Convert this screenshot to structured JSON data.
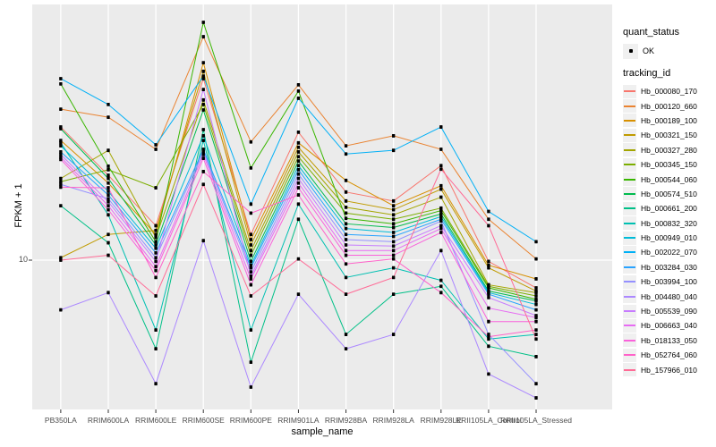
{
  "chart_data": {
    "type": "line",
    "title": "",
    "xlabel": "sample_name",
    "ylabel": "FPKM + 1",
    "y_scale": "log10",
    "y_ticks": [
      10
    ],
    "y_tick_labels": [
      "10"
    ],
    "grid": "major-only",
    "legend_position": "right",
    "point_marker": "black-point-on-every-value",
    "categories": [
      "PB350LA",
      "RRIM600LA",
      "RRIM600LE",
      "RRIM600SE",
      "RRIM600PE",
      "RRIM901LA",
      "RRIM928BA",
      "RRIM928LA",
      "RRIM928LE",
      "RRII105LA_Control",
      "RRII105LA_Stressed"
    ],
    "series": [
      {
        "name": "Hb_000080_170",
        "color": "#F8766D",
        "values": [
          29.2,
          19.8,
          13.2,
          43.1,
          12.3,
          28.0,
          17.3,
          16.1,
          21.4,
          9.9,
          8.0
        ]
      },
      {
        "name": "Hb_000120_660",
        "color": "#EA8331",
        "values": [
          33.7,
          31.6,
          24.4,
          60.4,
          25.9,
          41.0,
          25.1,
          27.2,
          24.4,
          13.9,
          10.1
        ]
      },
      {
        "name": "Hb_000189_100",
        "color": "#D89000",
        "values": [
          26.2,
          18.6,
          12.3,
          49.0,
          11.8,
          25.7,
          19.0,
          15.5,
          18.2,
          9.6,
          8.6
        ]
      },
      {
        "name": "Hb_000321_150",
        "color": "#C09B00",
        "values": [
          10.2,
          12.3,
          12.7,
          45.7,
          11.3,
          24.8,
          16.1,
          15.0,
          17.7,
          9.4,
          7.8
        ]
      },
      {
        "name": "Hb_000327_280",
        "color": "#A3A500",
        "values": [
          19.3,
          24.2,
          12.0,
          36.3,
          10.8,
          23.9,
          15.3,
          14.4,
          16.6,
          8.2,
          7.7
        ]
      },
      {
        "name": "Hb_000345_150",
        "color": "#7CAE00",
        "values": [
          18.8,
          20.7,
          17.9,
          35.0,
          10.4,
          23.0,
          14.6,
          13.9,
          15.2,
          8.1,
          7.5
        ]
      },
      {
        "name": "Hb_000544_060",
        "color": "#39B600",
        "values": [
          41.3,
          21.3,
          11.6,
          67.8,
          21.0,
          39.0,
          14.0,
          13.4,
          14.9,
          8.0,
          7.3
        ]
      },
      {
        "name": "Hb_000574_510",
        "color": "#00BB4E",
        "values": [
          28.8,
          19.3,
          11.3,
          33.5,
          9.9,
          22.2,
          13.4,
          13.0,
          14.5,
          7.8,
          7.2
        ]
      },
      {
        "name": "Hb_000661_200",
        "color": "#00C087",
        "values": [
          15.5,
          11.5,
          4.9,
          28.6,
          4.4,
          13.9,
          5.5,
          7.6,
          8.1,
          5.0,
          4.6
        ]
      },
      {
        "name": "Hb_000832_320",
        "color": "#00C0B2",
        "values": [
          25.7,
          14.4,
          5.7,
          26.2,
          5.7,
          15.7,
          8.7,
          9.4,
          8.5,
          5.3,
          5.5
        ]
      },
      {
        "name": "Hb_000949_010",
        "color": "#00BCD8",
        "values": [
          25.1,
          17.4,
          11.0,
          27.2,
          9.6,
          21.4,
          12.9,
          12.5,
          14.2,
          7.7,
          7.0
        ]
      },
      {
        "name": "Hb_002022_070",
        "color": "#00B0F6",
        "values": [
          43.1,
          35.0,
          25.3,
          44.0,
          15.7,
          36.8,
          23.5,
          24.2,
          29.2,
          14.8,
          11.6
        ]
      },
      {
        "name": "Hb_003284_030",
        "color": "#29A3FF",
        "values": [
          23.9,
          16.9,
          10.6,
          24.4,
          9.4,
          20.7,
          12.3,
          12.1,
          13.9,
          7.6,
          6.7
        ]
      },
      {
        "name": "Hb_003994_100",
        "color": "#9590FF",
        "values": [
          18.4,
          16.4,
          10.2,
          23.9,
          9.1,
          20.0,
          11.8,
          11.6,
          13.7,
          5.5,
          3.7
        ]
      },
      {
        "name": "Hb_004480_040",
        "color": "#AC88FF",
        "values": [
          6.7,
          7.7,
          3.7,
          11.7,
          3.6,
          7.6,
          4.9,
          5.5,
          10.8,
          4.0,
          3.3
        ]
      },
      {
        "name": "Hb_005539_090",
        "color": "#C77CFF",
        "values": [
          23.4,
          16.0,
          9.9,
          39.5,
          8.8,
          19.3,
          11.3,
          11.2,
          13.2,
          7.4,
          6.4
        ]
      },
      {
        "name": "Hb_006663_040",
        "color": "#E76BF3",
        "values": [
          22.9,
          15.5,
          9.5,
          23.4,
          8.6,
          18.6,
          10.8,
          10.8,
          12.9,
          6.8,
          6.3
        ]
      },
      {
        "name": "Hb_018133_050",
        "color": "#FA62DB",
        "values": [
          22.5,
          15.0,
          9.2,
          22.7,
          8.2,
          17.9,
          10.4,
          10.4,
          12.5,
          6.1,
          6.1
        ]
      },
      {
        "name": "Hb_052764_060",
        "color": "#FF61C9",
        "values": [
          18.0,
          17.9,
          8.7,
          20.4,
          14.6,
          16.9,
          9.7,
          10.1,
          7.7,
          5.4,
          5.7
        ]
      },
      {
        "name": "Hb_157966_010",
        "color": "#FF6B96",
        "values": [
          10.0,
          10.4,
          7.5,
          18.4,
          7.5,
          10.1,
          7.6,
          8.7,
          20.8,
          13.2,
          5.3
        ]
      }
    ]
  },
  "legend": {
    "quant_status_title": "quant_status",
    "quant_status_items": [
      {
        "label": "OK",
        "marker": "black-point"
      }
    ],
    "tracking_id_title": "tracking_id"
  },
  "colors": {
    "panel_bg": "#EBEBEB",
    "gridline": "#FFFFFF",
    "axis_text": "#4d4d4d",
    "tick_mark": "#333333",
    "point": "#000000",
    "legend_key_bg": "#F0F0F0"
  }
}
